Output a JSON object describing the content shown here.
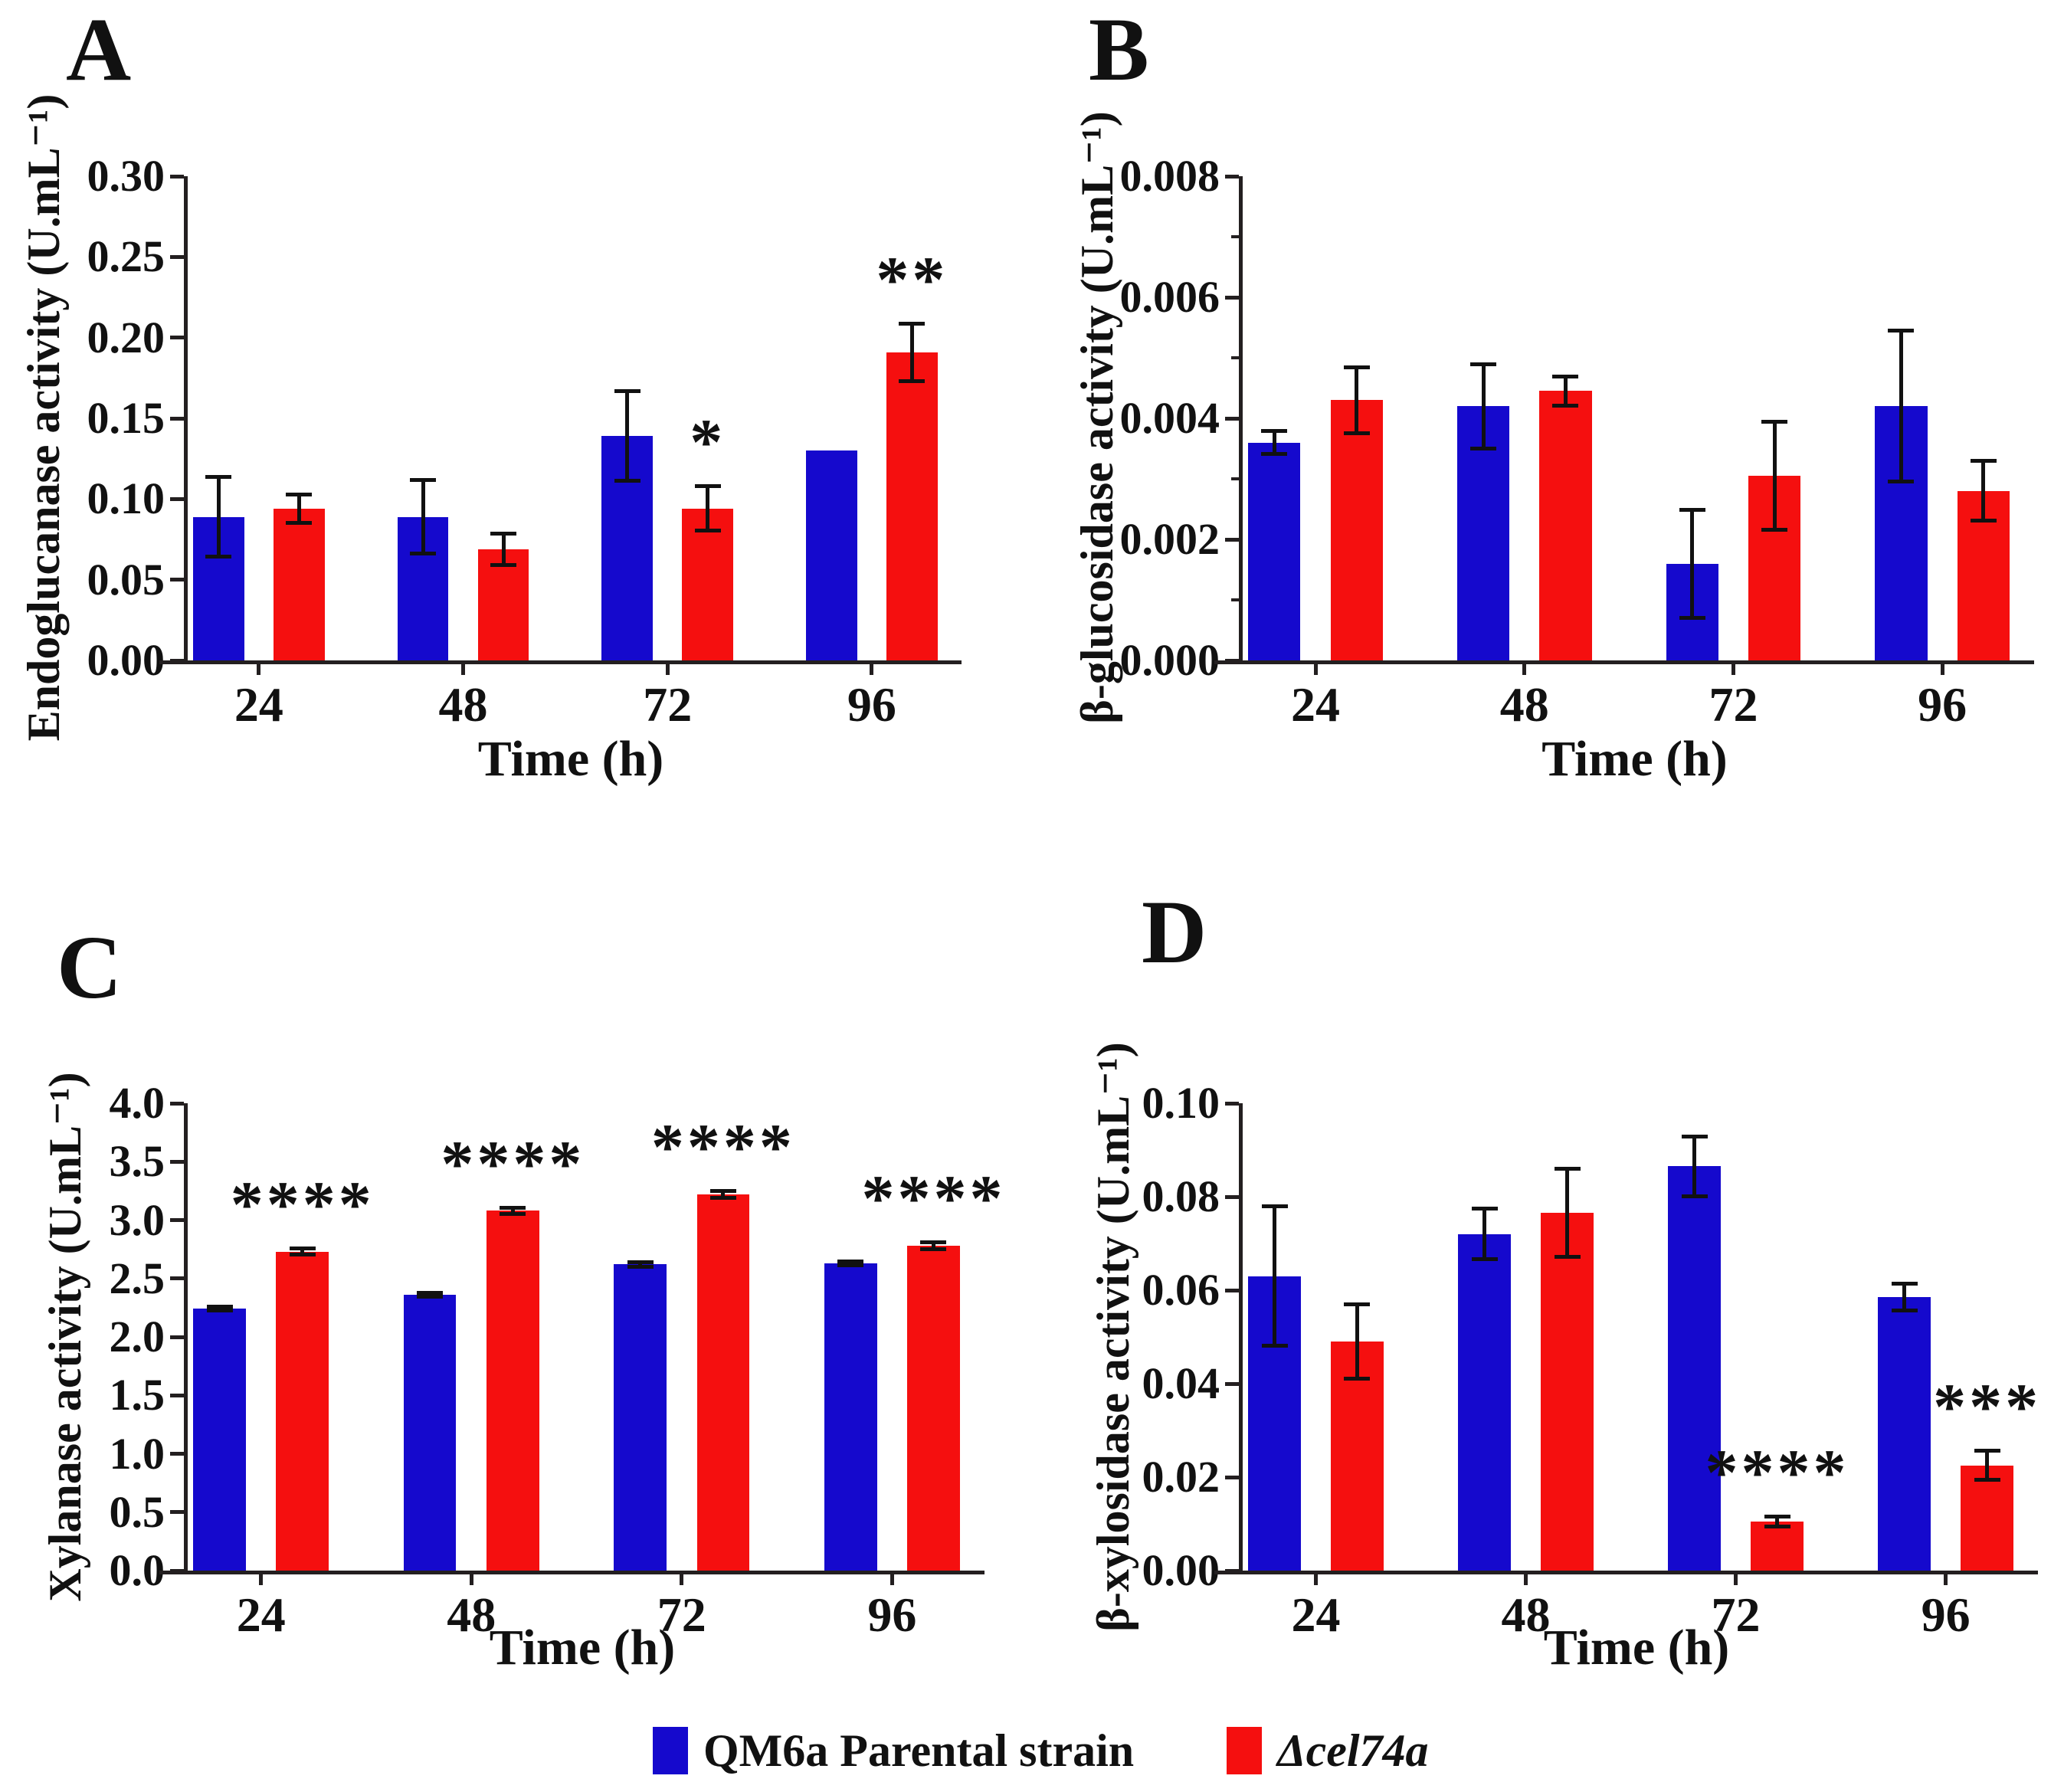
{
  "figure": {
    "background": "#ffffff",
    "axis_color": "#231f20",
    "legend": [
      {
        "label": "QM6a Parental strain",
        "color": "#1509cd",
        "italic": false
      },
      {
        "label": "Δcel74a",
        "color": "#f50f0f",
        "italic": true
      }
    ]
  },
  "chart_data": [
    {
      "panel": "A",
      "type": "bar",
      "title": "",
      "xlabel": "Time (h)",
      "ylabel": "Endoglucanase activity (U.mL⁻¹)",
      "categories": [
        "24",
        "48",
        "72",
        "96"
      ],
      "ylim": [
        0,
        0.3
      ],
      "ytick_labels": [
        "0.00",
        "0.05",
        "0.10",
        "0.15",
        "0.20",
        "0.25",
        "0.30"
      ],
      "grid": false,
      "series": [
        {
          "name": "QM6a Parental strain",
          "color": "#1509cd",
          "values": [
            0.089,
            0.089,
            0.139,
            0.13
          ],
          "errors": [
            0.025,
            0.023,
            0.028,
            0
          ],
          "sig": [
            "",
            "",
            "",
            ""
          ]
        },
        {
          "name": "Δcel74a",
          "color": "#f50f0f",
          "values": [
            0.094,
            0.069,
            0.094,
            0.191
          ],
          "errors": [
            0.009,
            0.01,
            0.014,
            0.018
          ],
          "sig": [
            "",
            "",
            "*",
            "**"
          ]
        }
      ]
    },
    {
      "panel": "B",
      "type": "bar",
      "title": "",
      "xlabel": "Time (h)",
      "ylabel": "β-glucosidase activity (U.mL⁻¹)",
      "categories": [
        "24",
        "48",
        "72",
        "96"
      ],
      "ylim": [
        0,
        0.008
      ],
      "ytick_labels": [
        "0.000",
        "0.002",
        "0.004",
        "0.006",
        "0.008"
      ],
      "minor_tick_step": 0.001,
      "grid": false,
      "series": [
        {
          "name": "QM6a Parental strain",
          "color": "#1509cd",
          "values": [
            0.0036,
            0.0042,
            0.0016,
            0.0042
          ],
          "errors": [
            0.0002,
            0.0007,
            0.0009,
            0.00125
          ],
          "sig": [
            "",
            "",
            "",
            ""
          ]
        },
        {
          "name": "Δcel74a",
          "color": "#f50f0f",
          "values": [
            0.0043,
            0.00445,
            0.00305,
            0.0028
          ],
          "errors": [
            0.00055,
            0.00025,
            0.0009,
            0.0005
          ],
          "sig": [
            "",
            "",
            "",
            ""
          ]
        }
      ]
    },
    {
      "panel": "C",
      "type": "bar",
      "title": "",
      "xlabel": "Time (h)",
      "ylabel": "Xylanase activity (U.mL⁻¹)",
      "categories": [
        "24",
        "48",
        "72",
        "96"
      ],
      "ylim": [
        0,
        4.0
      ],
      "ytick_labels": [
        "0.0",
        "0.5",
        "1.0",
        "1.5",
        "2.0",
        "2.5",
        "3.0",
        "3.5",
        "4.0"
      ],
      "grid": false,
      "series": [
        {
          "name": "QM6a Parental strain",
          "color": "#1509cd",
          "values": [
            2.24,
            2.36,
            2.62,
            2.63
          ],
          "errors": [
            0.02,
            0.02,
            0.02,
            0.02
          ],
          "sig": [
            "",
            "",
            "",
            ""
          ]
        },
        {
          "name": "Δcel74a",
          "color": "#f50f0f",
          "values": [
            2.73,
            3.08,
            3.22,
            2.78
          ],
          "errors": [
            0.03,
            0.03,
            0.03,
            0.03
          ],
          "sig": [
            "****",
            "****",
            "****",
            "****"
          ]
        }
      ]
    },
    {
      "panel": "D",
      "type": "bar",
      "title": "",
      "xlabel": "Time (h)",
      "ylabel": "β-xylosidase activity (U.mL⁻¹)",
      "categories": [
        "24",
        "48",
        "72",
        "96"
      ],
      "ylim": [
        0,
        0.1
      ],
      "ytick_labels": [
        "0.00",
        "0.02",
        "0.04",
        "0.06",
        "0.08",
        "0.10"
      ],
      "grid": false,
      "series": [
        {
          "name": "QM6a Parental strain",
          "color": "#1509cd",
          "values": [
            0.063,
            0.072,
            0.0865,
            0.0585
          ],
          "errors": [
            0.015,
            0.0055,
            0.0065,
            0.003
          ],
          "sig": [
            "",
            "",
            "",
            ""
          ]
        },
        {
          "name": "Δcel74a",
          "color": "#f50f0f",
          "values": [
            0.049,
            0.0765,
            0.0105,
            0.0225
          ],
          "errors": [
            0.008,
            0.0095,
            0.0012,
            0.0032
          ],
          "sig": [
            "",
            "",
            "****",
            "***"
          ]
        }
      ]
    }
  ]
}
